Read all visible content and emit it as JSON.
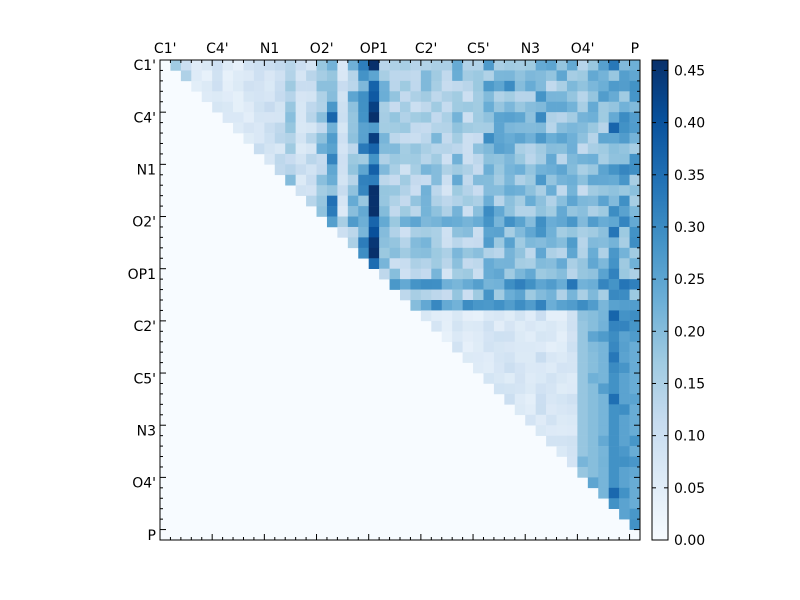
{
  "chart_data": {
    "type": "heatmap",
    "title": "",
    "xlabel": "",
    "ylabel": "",
    "x_tick_labels": [
      "C1'",
      "C4'",
      "N1",
      "O2'",
      "OP1",
      "C2'",
      "C5'",
      "N3",
      "O4'",
      "P"
    ],
    "y_tick_labels": [
      "C1'",
      "C4'",
      "N1",
      "O2'",
      "OP1",
      "C2'",
      "C5'",
      "N3",
      "O4'",
      "P"
    ],
    "matrix_size": 46,
    "cells_per_tick": 5,
    "upper_triangle_only": true,
    "colormap": "Blues",
    "colorbar": {
      "min": 0.0,
      "max": 0.46,
      "ticks": [
        "0.00",
        "0.05",
        "0.10",
        "0.15",
        "0.20",
        "0.25",
        "0.30",
        "0.35",
        "0.40",
        "0.45"
      ],
      "tick_values": [
        0.0,
        0.05,
        0.1,
        0.15,
        0.2,
        0.25,
        0.3,
        0.35,
        0.4,
        0.45
      ]
    },
    "approximate_column_strengths": [
      0.0,
      0.18,
      0.14,
      0.06,
      0.06,
      0.1,
      0.06,
      0.06,
      0.08,
      0.1,
      0.1,
      0.12,
      0.18,
      0.1,
      0.12,
      0.2,
      0.32,
      0.1,
      0.22,
      0.3,
      0.45,
      0.22,
      0.18,
      0.16,
      0.18,
      0.2,
      0.2,
      0.14,
      0.22,
      0.18,
      0.18,
      0.26,
      0.24,
      0.26,
      0.22,
      0.22,
      0.28,
      0.22,
      0.22,
      0.24,
      0.2,
      0.22,
      0.24,
      0.32,
      0.28,
      0.26
    ],
    "notable_rows": [
      {
        "row": 15,
        "value": 0.2
      },
      {
        "row": 21,
        "value": 0.3
      },
      {
        "row": 23,
        "value": 0.28
      },
      {
        "row": 35,
        "value": 0.05
      }
    ]
  },
  "colors": {
    "colormap_stops": [
      "#f7fbff",
      "#deebf7",
      "#c6dbef",
      "#9ecae1",
      "#6baed6",
      "#4292c6",
      "#2171b5",
      "#08519c",
      "#08306b"
    ],
    "axis": "#000000",
    "background": "#ffffff"
  }
}
